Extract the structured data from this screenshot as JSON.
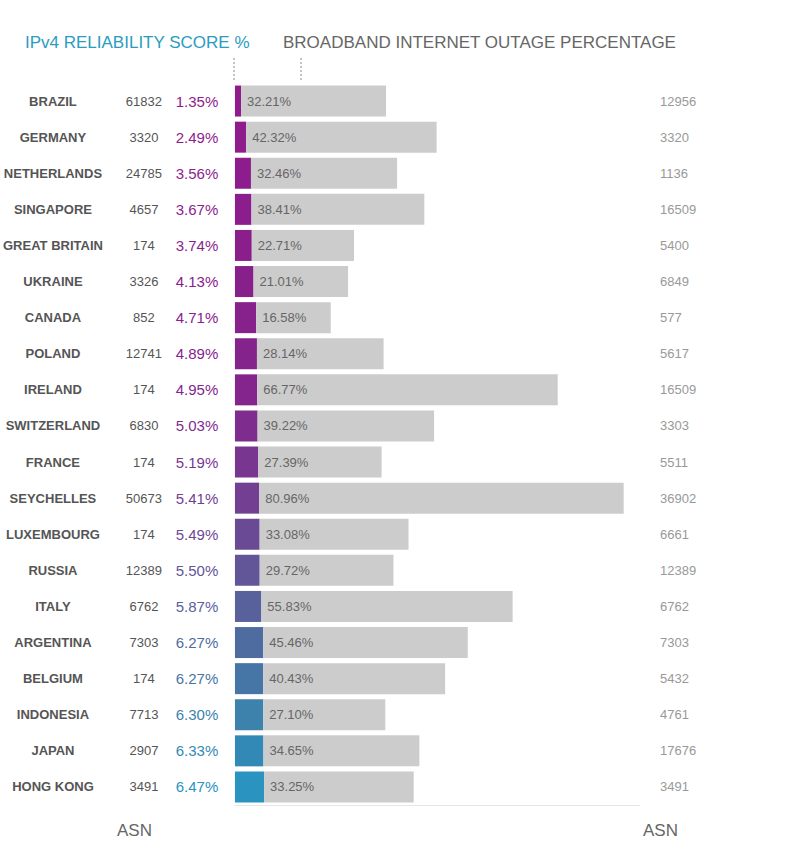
{
  "chart_data": {
    "type": "bar",
    "orientation": "horizontal",
    "stacked": true,
    "data_labels": true,
    "tick_labels": false,
    "grid": false,
    "xlim": [
      0,
      90
    ],
    "headers": [
      "IPv4 RELIABILITY SCORE %",
      "BROADBAND INTERNET OUTAGE PERCENTAGE"
    ],
    "categories": [
      "BRAZIL",
      "GERMANY",
      "NETHERLANDS",
      "SINGAPORE",
      "GREAT BRITAIN",
      "UKRAINE",
      "CANADA",
      "POLAND",
      "IRELAND",
      "SWITZERLAND",
      "FRANCE",
      "SEYCHELLES",
      "LUXEMBOURG",
      "RUSSIA",
      "ITALY",
      "ARGENTINA",
      "BELGIUM",
      "INDONESIA",
      "JAPAN",
      "HONG KONG"
    ],
    "asn_left": {
      "label": "ASN",
      "values": [
        61832,
        3320,
        24785,
        4657,
        174,
        3326,
        852,
        12741,
        174,
        6830,
        174,
        50673,
        174,
        12389,
        6762,
        7303,
        174,
        7713,
        2907,
        3491
      ]
    },
    "asn_right": {
      "label": "ASN",
      "values": [
        12956,
        3320,
        1136,
        16509,
        5400,
        6849,
        577,
        5617,
        16509,
        3303,
        5511,
        36902,
        6661,
        12389,
        6762,
        7303,
        5432,
        4761,
        17676,
        3491
      ]
    },
    "series": [
      {
        "name": "IPv4 RELIABILITY SCORE %",
        "colors": [
          "#8f1b8c",
          "#8e1c8c",
          "#8d1d8c",
          "#8b1e8c",
          "#8a1f8c",
          "#88208c",
          "#87218c",
          "#85238d",
          "#83258d",
          "#7e2d8f",
          "#783690",
          "#723f92",
          "#6b4a95",
          "#625598",
          "#58619c",
          "#4e6ca0",
          "#4676a6",
          "#3d81ad",
          "#3389b6",
          "#2a93c0"
        ],
        "values": [
          1.35,
          2.49,
          3.56,
          3.67,
          3.74,
          4.13,
          4.71,
          4.89,
          4.95,
          5.03,
          5.19,
          5.41,
          5.49,
          5.5,
          5.87,
          6.27,
          6.27,
          6.3,
          6.33,
          6.47
        ],
        "value_labels": [
          "1.35%",
          "2.49%",
          "3.56%",
          "3.67%",
          "3.74%",
          "4.13%",
          "4.71%",
          "4.89%",
          "4.95%",
          "5.03%",
          "5.19%",
          "5.41%",
          "5.49%",
          "5.50%",
          "5.87%",
          "6.27%",
          "6.27%",
          "6.30%",
          "6.33%",
          "6.47%"
        ]
      },
      {
        "name": "BROADBAND INTERNET OUTAGE PERCENTAGE",
        "color": "#cccccc",
        "values": [
          32.21,
          42.32,
          32.46,
          38.41,
          22.71,
          21.01,
          16.58,
          28.14,
          66.77,
          39.22,
          27.39,
          80.96,
          33.08,
          29.72,
          55.83,
          45.46,
          40.43,
          27.1,
          34.65,
          33.25
        ],
        "value_labels": [
          "32.21%",
          "42.32%",
          "32.46%",
          "38.41%",
          "22.71%",
          "21.01%",
          "16.58%",
          "28.14%",
          "66.77%",
          "39.22%",
          "27.39%",
          "80.96%",
          "33.08%",
          "29.72%",
          "55.83%",
          "45.46%",
          "40.43%",
          "27.10%",
          "34.65%",
          "33.25%"
        ]
      }
    ]
  }
}
